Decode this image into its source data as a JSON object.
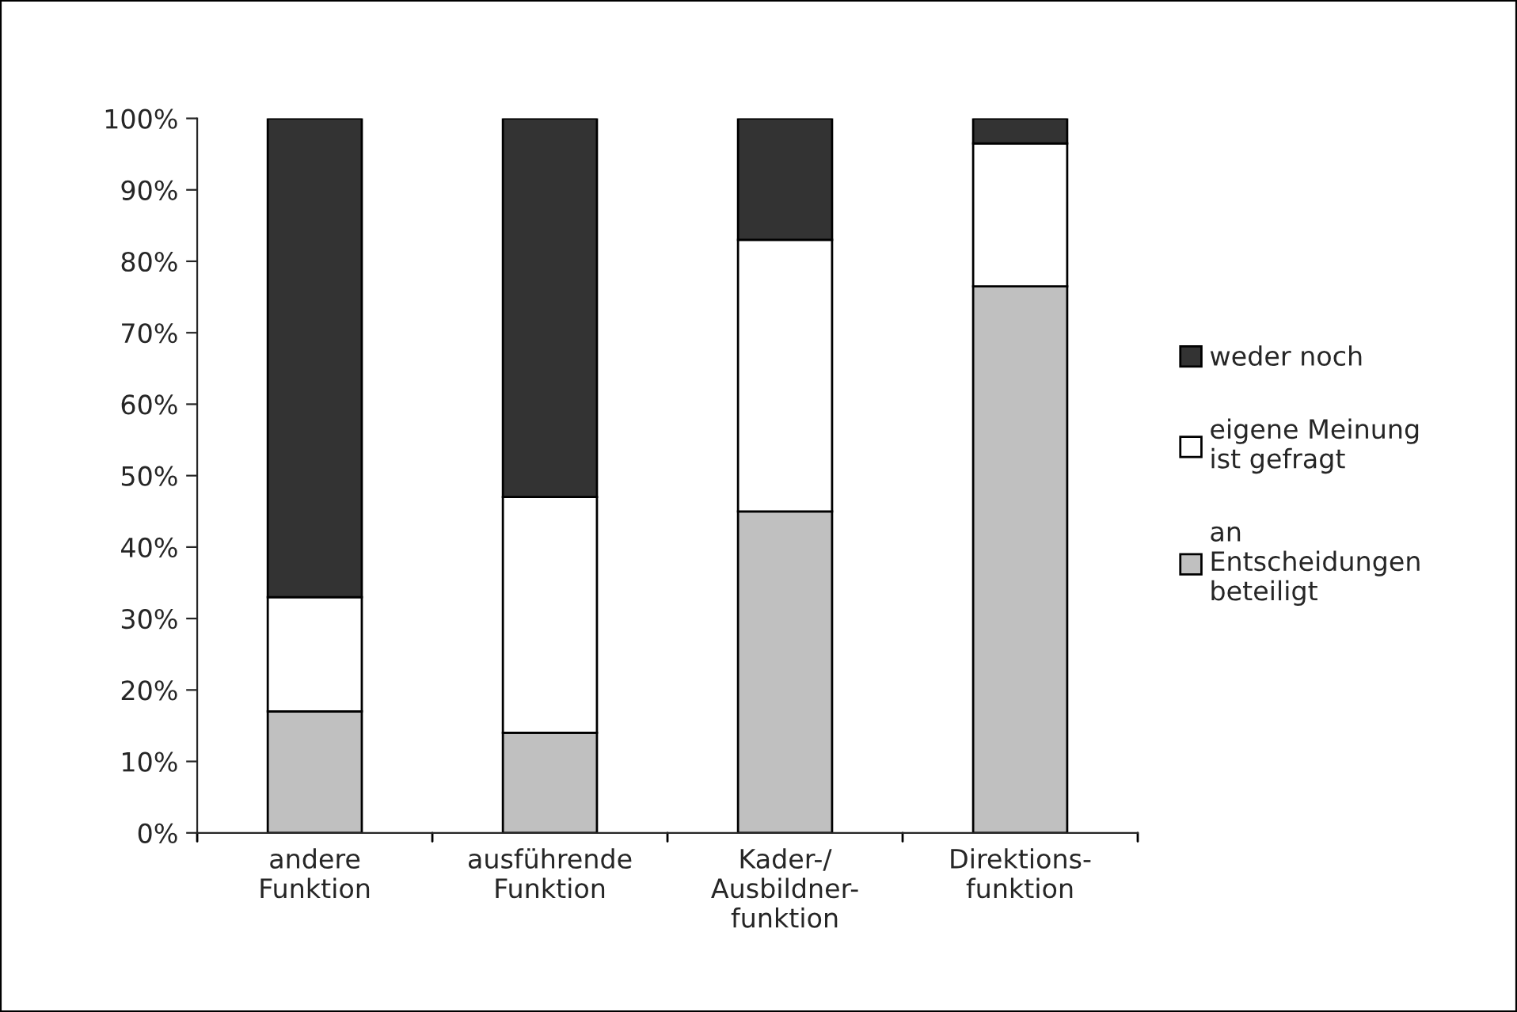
{
  "chart_data": {
    "type": "bar",
    "stacked": true,
    "categories": [
      "andere\nFunktion",
      "ausführende\nFunktion",
      "Kader-/\nAusbildner-\nfunktion",
      "Direktions-\nfunktion"
    ],
    "series": [
      {
        "name": "an\nEntscheidungen\nbeteiligt",
        "color": "#c0c0c0",
        "values": [
          17,
          14,
          45,
          76.5
        ]
      },
      {
        "name": "eigene Meinung\nist gefragt",
        "color": "#ffffff",
        "values": [
          16,
          33,
          38,
          20
        ]
      },
      {
        "name": "weder noch",
        "color": "#333333",
        "values": [
          67,
          53,
          17,
          3.5
        ]
      }
    ],
    "ylim": [
      0,
      100
    ],
    "yticks": [
      {
        "value": 0,
        "label": "0%"
      },
      {
        "value": 10,
        "label": "10%"
      },
      {
        "value": 20,
        "label": "20%"
      },
      {
        "value": 30,
        "label": "30%"
      },
      {
        "value": 40,
        "label": "40%"
      },
      {
        "value": 50,
        "label": "50%"
      },
      {
        "value": 60,
        "label": "60%"
      },
      {
        "value": 70,
        "label": "70%"
      },
      {
        "value": 80,
        "label": "80%"
      },
      {
        "value": 90,
        "label": "90%"
      },
      {
        "value": 100,
        "label": "100%"
      }
    ],
    "grid": false,
    "legend": "right"
  }
}
